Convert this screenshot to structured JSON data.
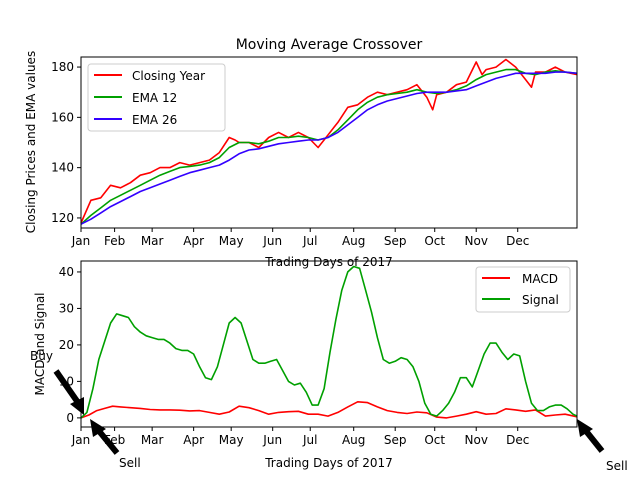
{
  "figure": {
    "title": "Moving Average Crossover"
  },
  "chart_data": [
    {
      "type": "line",
      "title": "Moving Average Crossover",
      "xlabel": "Trading Days of 2017",
      "ylabel": "Closing Prices and EMA values",
      "x_ticks": [
        "Jan",
        "Feb",
        "Mar",
        "Apr",
        "May",
        "Jun",
        "Jul",
        "Aug",
        "Sep",
        "Oct",
        "Nov",
        "Dec"
      ],
      "x_tick_days": [
        0,
        17,
        36,
        57,
        76,
        97,
        116,
        138,
        159,
        179,
        200,
        221
      ],
      "xlim": [
        0,
        251
      ],
      "ylim": [
        116,
        184
      ],
      "y_ticks": [
        120,
        140,
        160,
        180
      ],
      "grid": false,
      "legend": "top-left",
      "series": [
        {
          "name": "Closing Year",
          "color": "#ff0000",
          "x": [
            0,
            5,
            10,
            15,
            20,
            25,
            30,
            35,
            40,
            45,
            50,
            55,
            60,
            65,
            70,
            75,
            78,
            80,
            85,
            90,
            95,
            100,
            105,
            110,
            115,
            120,
            125,
            128,
            130,
            135,
            140,
            145,
            150,
            155,
            160,
            165,
            170,
            175,
            178,
            180,
            185,
            190,
            195,
            200,
            203,
            205,
            210,
            215,
            220,
            225,
            228,
            230,
            235,
            240,
            245,
            251
          ],
          "y": [
            118,
            127,
            128,
            133,
            132,
            134,
            137,
            138,
            140,
            140,
            142,
            141,
            142,
            143,
            146,
            152,
            151,
            150,
            150,
            148,
            152,
            154,
            152,
            154,
            152,
            148,
            153,
            156,
            158,
            164,
            165,
            168,
            170,
            169,
            170,
            171,
            173,
            168,
            163,
            169,
            170,
            173,
            174,
            182,
            177,
            179,
            180,
            183,
            180,
            175,
            172,
            178,
            178,
            180,
            178,
            177
          ]
        },
        {
          "name": "EMA 12",
          "color": "#00a000",
          "x": [
            0,
            5,
            10,
            15,
            20,
            25,
            30,
            35,
            40,
            45,
            50,
            55,
            60,
            65,
            70,
            75,
            80,
            85,
            90,
            95,
            100,
            105,
            110,
            115,
            120,
            125,
            130,
            135,
            140,
            145,
            150,
            155,
            160,
            165,
            170,
            175,
            180,
            185,
            190,
            195,
            200,
            205,
            210,
            215,
            220,
            225,
            230,
            235,
            240,
            245,
            251
          ],
          "y": [
            117.5,
            121,
            124,
            127,
            129,
            131,
            133,
            135,
            137,
            138.5,
            140,
            140.5,
            141,
            142,
            144,
            148,
            150,
            150,
            149.5,
            150.5,
            152,
            152,
            152.5,
            152,
            151,
            152,
            155,
            159,
            163,
            166,
            168,
            169,
            169.5,
            170,
            171,
            170,
            169.5,
            170,
            171,
            172.5,
            175,
            177,
            178,
            179,
            179,
            177.5,
            177,
            178,
            178.5,
            178,
            177.5
          ]
        },
        {
          "name": "EMA 26",
          "color": "#3300ff",
          "x": [
            0,
            5,
            10,
            15,
            20,
            25,
            30,
            35,
            40,
            45,
            50,
            55,
            60,
            65,
            70,
            75,
            80,
            85,
            90,
            95,
            100,
            105,
            110,
            115,
            120,
            125,
            130,
            135,
            140,
            145,
            150,
            155,
            160,
            165,
            170,
            175,
            180,
            185,
            190,
            195,
            200,
            205,
            210,
            215,
            220,
            225,
            230,
            235,
            240,
            245,
            251
          ],
          "y": [
            117.5,
            119.5,
            122,
            124.5,
            126.5,
            128.5,
            130.5,
            132,
            133.5,
            135,
            136.5,
            138,
            139,
            140,
            141,
            143,
            145.5,
            147,
            147.5,
            148.5,
            149.5,
            150,
            150.5,
            151,
            151,
            152,
            154,
            157,
            160,
            163,
            165,
            166.5,
            167.5,
            168.5,
            169.5,
            170,
            170,
            170,
            170.5,
            171,
            172.5,
            174,
            175.5,
            176.5,
            177.5,
            177.5,
            177.5,
            177.5,
            178,
            178,
            177.5
          ]
        }
      ]
    },
    {
      "type": "line",
      "title": "",
      "xlabel": "Trading Days of 2017",
      "ylabel": "MACD and Signal",
      "x_ticks": [
        "Jan",
        "Feb",
        "Mar",
        "Apr",
        "May",
        "Jun",
        "Jul",
        "Aug",
        "Sep",
        "Oct",
        "Nov",
        "Dec"
      ],
      "x_tick_days": [
        0,
        17,
        36,
        57,
        76,
        97,
        116,
        138,
        159,
        179,
        200,
        221
      ],
      "xlim": [
        0,
        251
      ],
      "ylim": [
        -2.5,
        43
      ],
      "y_ticks": [
        0,
        10,
        20,
        30,
        40
      ],
      "grid": false,
      "legend": "top-right",
      "series": [
        {
          "name": "MACD",
          "color": "#ff0000",
          "x": [
            0,
            4,
            8,
            12,
            16,
            20,
            25,
            30,
            35,
            40,
            45,
            50,
            55,
            60,
            65,
            70,
            75,
            80,
            85,
            90,
            95,
            100,
            105,
            110,
            115,
            120,
            125,
            130,
            135,
            140,
            145,
            150,
            155,
            160,
            165,
            170,
            175,
            180,
            185,
            190,
            195,
            200,
            205,
            210,
            215,
            220,
            225,
            230,
            235,
            240,
            245,
            251
          ],
          "y": [
            0,
            0.8,
            2,
            2.6,
            3.2,
            3,
            2.8,
            2.6,
            2.3,
            2.2,
            2.2,
            2.1,
            1.9,
            2,
            1.5,
            1,
            1.6,
            3.2,
            2.8,
            2,
            1,
            1.5,
            1.7,
            1.8,
            1,
            1,
            0.5,
            1.5,
            3,
            4.4,
            4.2,
            3,
            2,
            1.5,
            1.2,
            1.6,
            1.4,
            0.2,
            0,
            0.5,
            1,
            1.7,
            1,
            1.2,
            2.5,
            2.2,
            1.8,
            2.2,
            0.5,
            0.8,
            1,
            0.3
          ]
        },
        {
          "name": "Signal",
          "color": "#00a000",
          "x": [
            0,
            3,
            6,
            9,
            12,
            15,
            18,
            21,
            24,
            27,
            30,
            33,
            36,
            39,
            42,
            45,
            48,
            51,
            54,
            57,
            60,
            63,
            66,
            69,
            72,
            75,
            78,
            81,
            84,
            87,
            90,
            93,
            96,
            99,
            102,
            105,
            108,
            111,
            114,
            117,
            120,
            123,
            126,
            129,
            132,
            135,
            138,
            141,
            144,
            147,
            150,
            153,
            156,
            159,
            162,
            165,
            168,
            171,
            174,
            177,
            180,
            183,
            186,
            189,
            192,
            195,
            198,
            201,
            204,
            207,
            210,
            213,
            216,
            219,
            222,
            225,
            228,
            231,
            234,
            237,
            240,
            243,
            246,
            249,
            251
          ],
          "y": [
            0,
            1.5,
            8,
            16,
            21,
            26,
            28.5,
            28,
            27.5,
            25,
            23.5,
            22.5,
            22,
            21.5,
            21.5,
            20.5,
            19,
            18.5,
            18.5,
            17.5,
            14,
            11,
            10.5,
            14,
            20,
            26,
            27.5,
            26,
            21,
            16,
            15,
            15,
            15.5,
            16,
            13,
            10,
            9,
            9.5,
            7,
            3.5,
            3.5,
            8,
            18,
            27,
            35,
            40,
            41.5,
            41,
            35,
            29,
            22,
            16,
            15,
            15.5,
            16.5,
            16,
            14,
            10,
            4,
            1,
            0.5,
            2,
            4,
            7,
            11,
            11,
            8.5,
            13,
            17.5,
            20.5,
            20.5,
            18,
            16,
            17.5,
            17,
            10,
            4,
            2,
            2,
            3,
            3.5,
            3.5,
            2.5,
            1,
            0.5
          ]
        }
      ],
      "annotations": [
        {
          "text": "Buy",
          "x": 0,
          "y": -0.5
        },
        {
          "text": "Sell",
          "x": 5,
          "y": -0.5
        },
        {
          "text": "Sell",
          "x": 249,
          "y": -0.5
        }
      ]
    }
  ]
}
